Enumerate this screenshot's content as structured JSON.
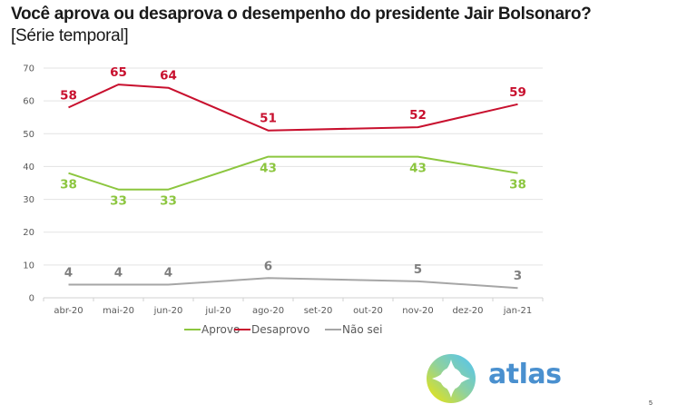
{
  "header": {
    "title": "Você aprova ou desaprova o desempenho do presidente Jair Bolsonaro?",
    "subtitle": "[Série temporal]"
  },
  "chart_data": {
    "type": "line",
    "title": "Você aprova ou desaprova o desempenho do presidente Jair Bolsonaro?",
    "subtitle": "[Série temporal]",
    "xlabel": "",
    "ylabel": "",
    "categories": [
      "abr-20",
      "mai-20",
      "jun-20",
      "jul-20",
      "ago-20",
      "set-20",
      "out-20",
      "nov-20",
      "dez-20",
      "jan-21"
    ],
    "ylim": [
      0,
      70
    ],
    "yticks": [
      0,
      10,
      20,
      30,
      40,
      50,
      60,
      70
    ],
    "grid": true,
    "legend_position": "bottom",
    "series": [
      {
        "name": "Aprovo",
        "color": "#8cc63f",
        "values": [
          38,
          33,
          33,
          null,
          43,
          null,
          null,
          43,
          null,
          38
        ],
        "label_position": "below"
      },
      {
        "name": "Desaprovo",
        "color": "#c8102e",
        "values": [
          58,
          65,
          64,
          null,
          51,
          null,
          null,
          52,
          null,
          59
        ],
        "label_position": "above"
      },
      {
        "name": "Não sei",
        "color": "#a6a6a6",
        "label_color": "#7f7f7f",
        "values": [
          4,
          4,
          4,
          null,
          6,
          null,
          null,
          5,
          null,
          3
        ],
        "label_position": "above"
      }
    ]
  },
  "branding": {
    "logo_text": "atlas",
    "logo_color": "#4a90cf"
  },
  "footer": {
    "page_number": "5"
  }
}
